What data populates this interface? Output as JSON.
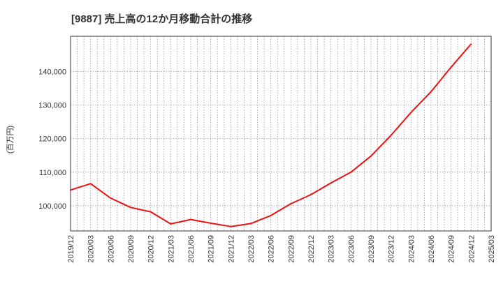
{
  "chart_data": {
    "type": "line",
    "title": "[9887]  売上高の12か月移動合計の推移",
    "xlabel": "",
    "ylabel": "(百万円)",
    "ylim": [
      92500,
      150500
    ],
    "yticks": [
      100000,
      110000,
      120000,
      130000,
      140000
    ],
    "ytick_labels": [
      "100,000",
      "110,000",
      "120,000",
      "130,000",
      "140,000"
    ],
    "x_start": "2019/12",
    "x_end": "2025/03",
    "xtick_labels": [
      "2019/12",
      "2020/03",
      "2020/06",
      "2020/09",
      "2020/12",
      "2021/03",
      "2021/06",
      "2021/09",
      "2021/12",
      "2022/03",
      "2022/06",
      "2022/09",
      "2022/12",
      "2023/03",
      "2023/06",
      "2023/09",
      "2023/12",
      "2024/03",
      "2024/06",
      "2024/09",
      "2024/12",
      "2025/03"
    ],
    "grid": true,
    "series": [
      {
        "name": "売上高",
        "color": "#ee1111",
        "x": [
          "2019/12",
          "2020/03",
          "2020/06",
          "2020/09",
          "2020/12",
          "2021/03",
          "2021/06",
          "2021/09",
          "2021/12",
          "2022/03",
          "2022/06",
          "2022/09",
          "2022/12",
          "2023/03",
          "2023/06",
          "2023/09",
          "2023/12",
          "2024/03",
          "2024/06",
          "2024/09",
          "2024/12"
        ],
        "values": [
          104700,
          106600,
          102300,
          99500,
          98200,
          94600,
          95900,
          94800,
          93800,
          94700,
          97100,
          100600,
          103300,
          106800,
          110000,
          114800,
          121000,
          127800,
          134000,
          141300,
          148200
        ]
      }
    ]
  }
}
